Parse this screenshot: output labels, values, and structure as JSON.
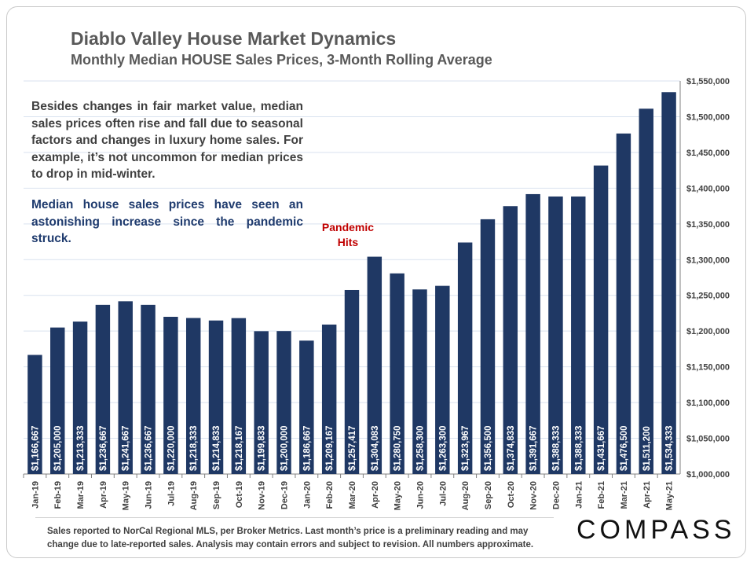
{
  "header": {
    "title": "Diablo Valley House Market Dynamics",
    "subtitle": "Monthly Median HOUSE Sales Prices, 3-Month Rolling Average"
  },
  "notes": {
    "body": "Besides changes in fair market value, median sales prices often rise and fall due to seasonal factors and changes in luxury home sales. For example, it’s not uncommon for median prices to drop in mid-winter.",
    "highlight": "Median house sales prices have seen an astonishing increase since the pandemic struck."
  },
  "annotation": {
    "line1": "Pandemic",
    "line2": "Hits"
  },
  "footer": {
    "text": "Sales reported to NorCal Regional MLS, per Broker Metrics. Last month’s price is a preliminary reading and may change due to late-reported sales. Analysis may contain errors and subject to revision. All numbers  approximate.",
    "logo": "COMPASS"
  },
  "colors": {
    "bar": "#1f3864",
    "bar_label": "#ffffff",
    "annotation": "#c00000",
    "grid": "#d9e2ef"
  },
  "chart_data": {
    "type": "bar",
    "categories": [
      "Jan-19",
      "Feb-19",
      "Mar-19",
      "Apr-19",
      "May-19",
      "Jun-19",
      "Jul-19",
      "Aug-19",
      "Sep-19",
      "Oct-19",
      "Nov-19",
      "Dec-19",
      "Jan-20",
      "Feb-20",
      "Mar-20",
      "Apr-20",
      "May-20",
      "Jun-20",
      "Jul-20",
      "Aug-20",
      "Sep-20",
      "Oct-20",
      "Nov-20",
      "Dec-20",
      "Jan-21",
      "Feb-21",
      "Mar-21",
      "Apr-21",
      "May-21"
    ],
    "values": [
      1166667,
      1205000,
      1213333,
      1236667,
      1241667,
      1236667,
      1220000,
      1218333,
      1214833,
      1218167,
      1199833,
      1200000,
      1186667,
      1209167,
      1257417,
      1304083,
      1280750,
      1258300,
      1263300,
      1323967,
      1356500,
      1374833,
      1391667,
      1388333,
      1388333,
      1431667,
      1476500,
      1511200,
      1534333
    ],
    "value_labels": [
      "$1,166,667",
      "$1,205,000",
      "$1,213,333",
      "$1,236,667",
      "$1,241,667",
      "$1,236,667",
      "$1,220,000",
      "$1,218,333",
      "$1,214,833",
      "$1,218,167",
      "$1,199,833",
      "$1,200,000",
      "$1,186,667",
      "$1,209,167",
      "$1,257,417",
      "$1,304,083",
      "$1,280,750",
      "$1,258,300",
      "$1,263,300",
      "$1,323,967",
      "$1,356,500",
      "$1,374,833",
      "$1,391,667",
      "$1,388,333",
      "$1,388,333",
      "$1,431,667",
      "$1,476,500",
      "$1,511,200",
      "$1,534,333"
    ],
    "ylim": [
      1000000,
      1550000
    ],
    "yticks": [
      1000000,
      1050000,
      1100000,
      1150000,
      1200000,
      1250000,
      1300000,
      1350000,
      1400000,
      1450000,
      1500000,
      1550000
    ],
    "ytick_labels": [
      "$1,000,000",
      "$1,050,000",
      "$1,100,000",
      "$1,150,000",
      "$1,200,000",
      "$1,250,000",
      "$1,300,000",
      "$1,350,000",
      "$1,400,000",
      "$1,450,000",
      "$1,500,000",
      "$1,550,000"
    ],
    "y_axis_side": "right",
    "grid": true,
    "legend": "none"
  }
}
